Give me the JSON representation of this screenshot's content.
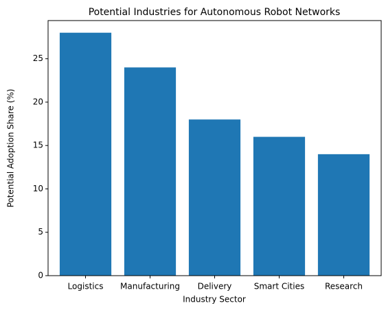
{
  "chart_data": {
    "type": "bar",
    "title": "Potential Industries for Autonomous Robot Networks",
    "x_label": "Industry Sector",
    "y_label": "Potential Adoption Share (%)",
    "categories": [
      "Logistics",
      "Manufacturing",
      "Delivery",
      "Smart Cities",
      "Research"
    ],
    "values": [
      28,
      24,
      18,
      16,
      14
    ],
    "color": "#1f77b4",
    "ylim": [
      0,
      29.4
    ],
    "yticks": [
      0,
      5,
      10,
      15,
      20,
      25
    ],
    "grid": false
  }
}
